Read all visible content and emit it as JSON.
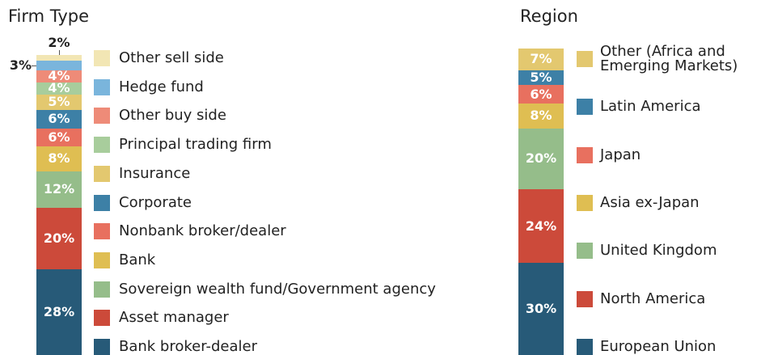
{
  "chart_data": [
    {
      "type": "bar",
      "title": "Firm Type",
      "ylim": [
        0,
        100
      ],
      "series": [
        {
          "name": "Bank broker-dealer",
          "color": "#275a78",
          "values": [
            28
          ],
          "value_labels": [
            "28%"
          ]
        },
        {
          "name": "Asset manager",
          "color": "#cc4a3a",
          "values": [
            20
          ],
          "value_labels": [
            "20%"
          ]
        },
        {
          "name": "Sovereign wealth fund/Government agency",
          "color": "#95bd8a",
          "values": [
            12
          ],
          "value_labels": [
            "12%"
          ]
        },
        {
          "name": "Bank",
          "color": "#dfbe52",
          "values": [
            8
          ],
          "value_labels": [
            "8%"
          ]
        },
        {
          "name": "Nonbank broker/dealer",
          "color": "#e8705f",
          "values": [
            6
          ],
          "value_labels": [
            "6%"
          ]
        },
        {
          "name": "Corporate",
          "color": "#3d80a6",
          "values": [
            6
          ],
          "value_labels": [
            "6%"
          ]
        },
        {
          "name": "Insurance",
          "color": "#e3c86f",
          "values": [
            5
          ],
          "value_labels": [
            "5%"
          ]
        },
        {
          "name": "Principal trading firm",
          "color": "#a8cd9c",
          "values": [
            4
          ],
          "value_labels": [
            "4%"
          ]
        },
        {
          "name": "Other buy side",
          "color": "#ee8b78",
          "values": [
            4
          ],
          "value_labels": [
            "4%"
          ]
        },
        {
          "name": "Hedge fund",
          "color": "#7ab5dc",
          "values": [
            3
          ],
          "value_labels": [
            "3%"
          ]
        },
        {
          "name": "Other sell side",
          "color": "#f2e6b4",
          "values": [
            2
          ],
          "value_labels": [
            "2%"
          ]
        }
      ]
    },
    {
      "type": "bar",
      "title": "Region",
      "ylim": [
        0,
        100
      ],
      "series": [
        {
          "name": "European Union",
          "color": "#275a78",
          "values": [
            30
          ],
          "value_labels": [
            "30%"
          ]
        },
        {
          "name": "North America",
          "color": "#cc4a3a",
          "values": [
            24
          ],
          "value_labels": [
            "24%"
          ]
        },
        {
          "name": "United Kingdom",
          "color": "#95bd8a",
          "values": [
            20
          ],
          "value_labels": [
            "20%"
          ]
        },
        {
          "name": "Asia ex-Japan",
          "color": "#dfbe52",
          "values": [
            8
          ],
          "value_labels": [
            "8%"
          ]
        },
        {
          "name": "Japan",
          "color": "#e8705f",
          "values": [
            6
          ],
          "value_labels": [
            "6%"
          ]
        },
        {
          "name": "Latin America",
          "color": "#3d80a6",
          "values": [
            5
          ],
          "value_labels": [
            "5%"
          ]
        },
        {
          "name": "Other (Africa and Emerging Markets)",
          "color": "#e3c86f",
          "values": [
            7
          ],
          "value_labels": [
            "7%"
          ]
        }
      ]
    }
  ]
}
